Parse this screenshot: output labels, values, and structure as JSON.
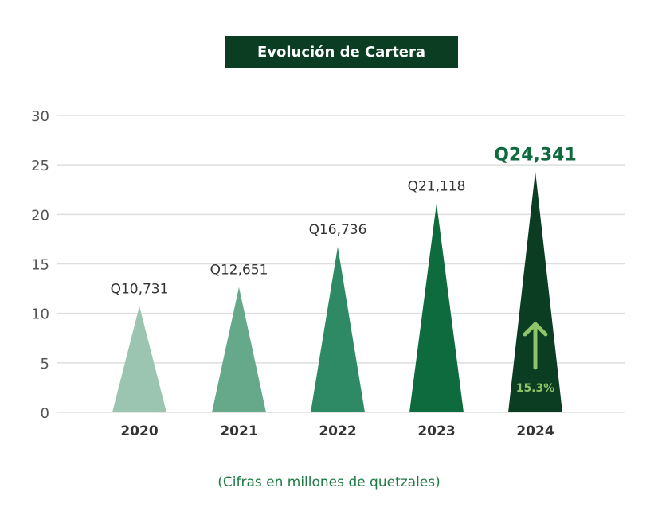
{
  "chart_data": {
    "type": "bar",
    "title": "Evolución de Cartera",
    "note": "(Cifras en millones de quetzales)",
    "categories": [
      "2020",
      "2021",
      "2022",
      "2023",
      "2024"
    ],
    "values": [
      10.731,
      12.651,
      16.736,
      21.118,
      24.341
    ],
    "data_labels": [
      "Q10,731",
      "Q12,651",
      "Q16,736",
      "Q21,118",
      "Q24,341"
    ],
    "colors": [
      "#9bc5b0",
      "#66a98a",
      "#2e8a64",
      "#0e6b3e",
      "#0b3d23"
    ],
    "ylim": [
      0,
      30
    ],
    "yticks": [
      "0",
      "5",
      "10",
      "15",
      "20",
      "25",
      "30"
    ],
    "grid": true,
    "annotation": {
      "text": "15.3%",
      "category": "2024",
      "icon": "arrow-up-icon",
      "color": "#8fc46a"
    },
    "highlight_label_color": "#0e6b3e"
  }
}
